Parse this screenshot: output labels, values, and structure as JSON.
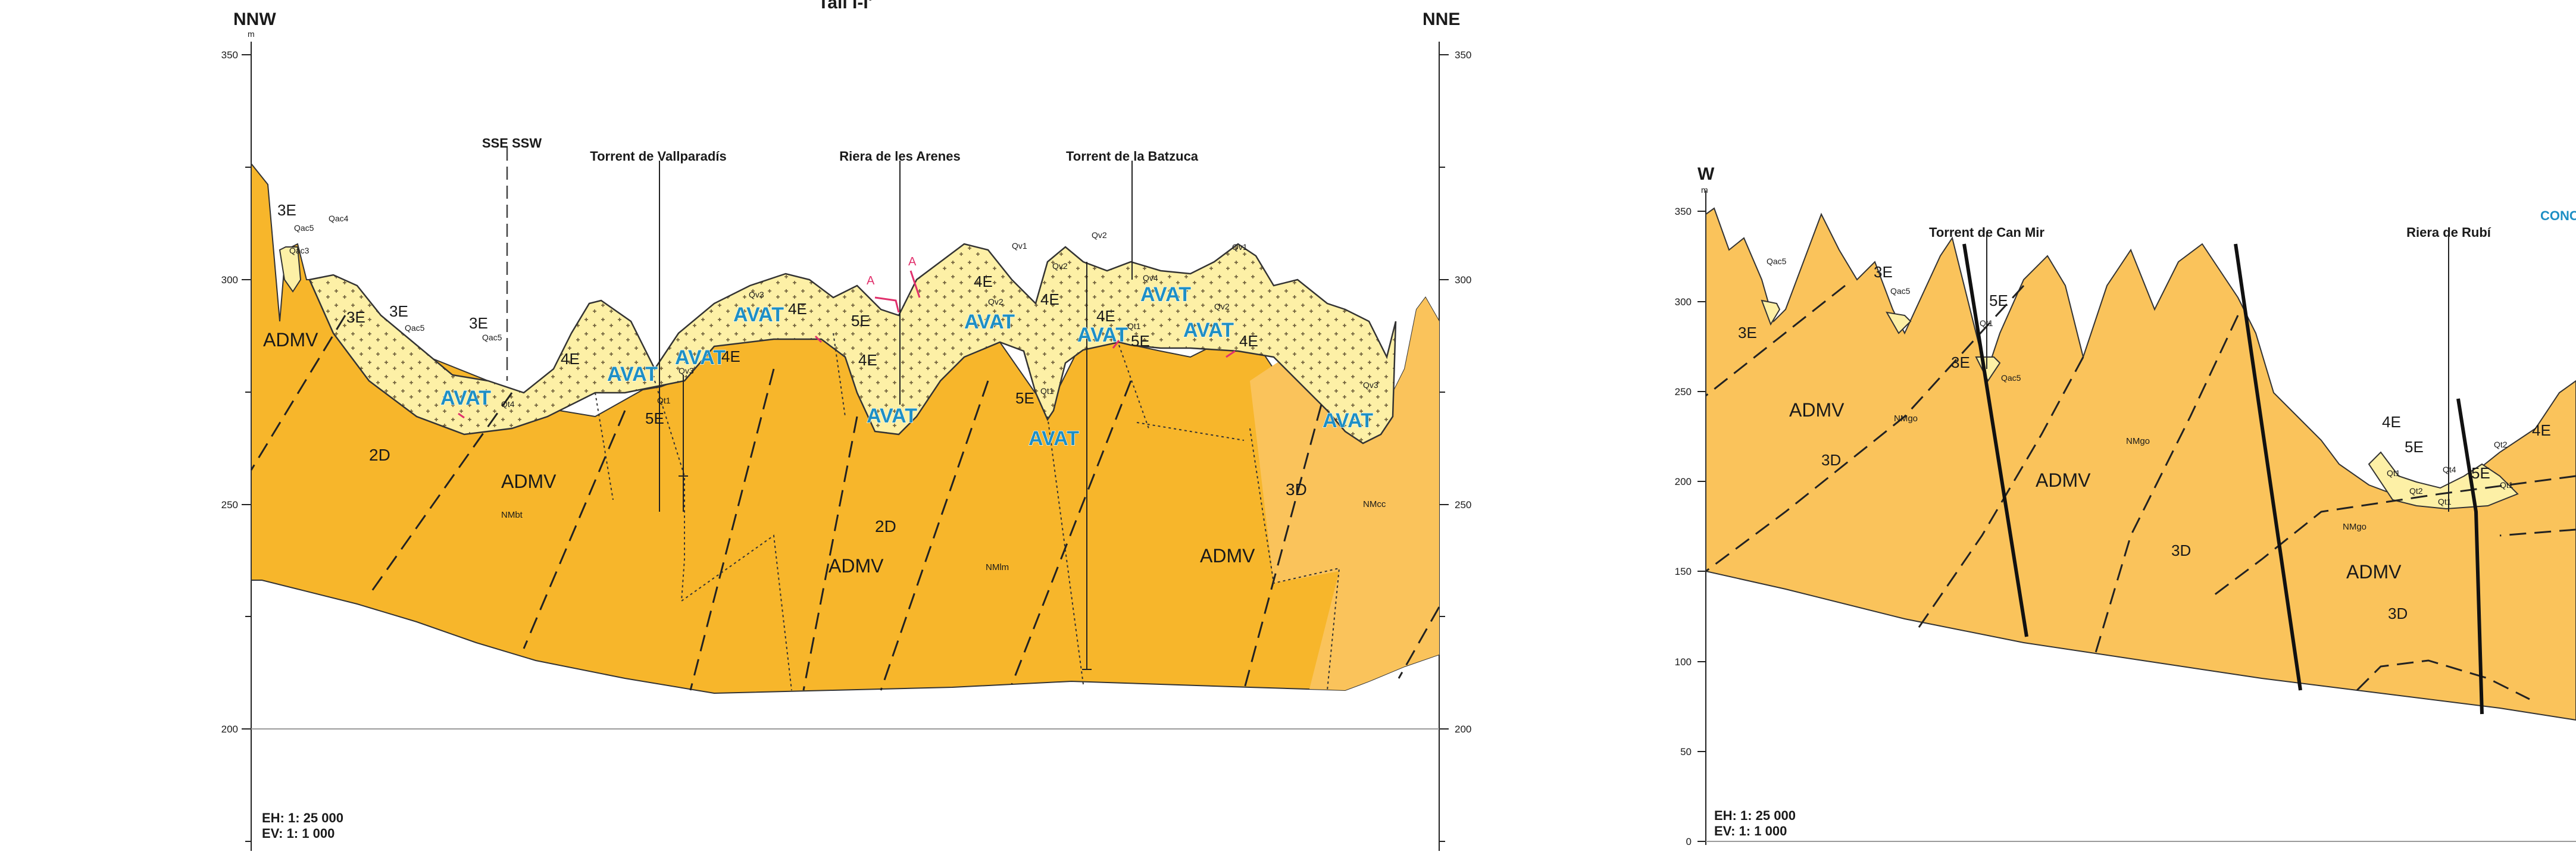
{
  "left_section": {
    "title": "Tall I-I'",
    "orient_left": "NNW",
    "orient_right": "NNE",
    "unit": "m",
    "elevations": [
      "350",
      "300",
      "250",
      "200"
    ],
    "bend": "SSE  SSW",
    "streams": [
      "Torrent de Vallparadís",
      "Riera de les Arenes",
      "Torrent de la Batzuca"
    ],
    "units": [
      "ADMV",
      "ADMV",
      "ADMV",
      "ADMV",
      "2D",
      "2D",
      "3D",
      "NMbt",
      "NMlm",
      "NMcc"
    ],
    "quaternary": [
      "3E",
      "3E",
      "3E",
      "3E",
      "4E",
      "4E",
      "4E",
      "4E",
      "4E",
      "4E",
      "4E",
      "4E",
      "5E",
      "5E",
      "5E",
      "5E"
    ],
    "qsmall": [
      "Qac5",
      "Qac3",
      "Qac4",
      "Qac5",
      "Qac5",
      "Qt4",
      "Qv3",
      "Qv3",
      "Qv1",
      "Qv2",
      "Qv2",
      "Qv2",
      "Qv4",
      "Qt1",
      "Qt1",
      "Qt1",
      "Qv2",
      "Qv1",
      "Qv3"
    ],
    "avat": [
      "AVAT",
      "AVAT",
      "AVAT",
      "AVAT",
      "AVAT",
      "AVAT",
      "AVAT",
      "AVAT",
      "AVAT",
      "AVAT",
      "AVAT"
    ],
    "marks": [
      "A",
      "A"
    ],
    "scale_h": "EH: 1: 25 000",
    "scale_v": "EV: 1: 1 000"
  },
  "right_section": {
    "orient_left": "W",
    "unit": "m",
    "elevations": [
      "350",
      "300",
      "250",
      "200",
      "150",
      "100",
      "50",
      "0"
    ],
    "streams": [
      "Torrent de Can Mir",
      "Riera de Rubí"
    ],
    "cut_label": "CONC",
    "units": [
      "ADMV",
      "ADMV",
      "ADMV",
      "3D",
      "3D",
      "3D",
      "3D",
      "NMgo",
      "NMgo",
      "NMgo"
    ],
    "quaternary": [
      "3E",
      "3E",
      "3E",
      "5E",
      "4E",
      "5E",
      "5E",
      "4E"
    ],
    "qsmall": [
      "Qac5",
      "Qac5",
      "Qt1",
      "Qac5",
      "Qt1",
      "Qt2",
      "Qt4",
      "Qt1",
      "Qt2",
      "Qt1"
    ],
    "scale_h": "EH: 1: 25 000",
    "scale_v": "EV: 1: 1 000"
  },
  "colors": {
    "dark_orange": "#f7b62b",
    "light_orange": "#fac35b",
    "yellow": "#fdf0a6",
    "blue_label": "#1e8fc4",
    "red_mark": "#e1306c"
  }
}
